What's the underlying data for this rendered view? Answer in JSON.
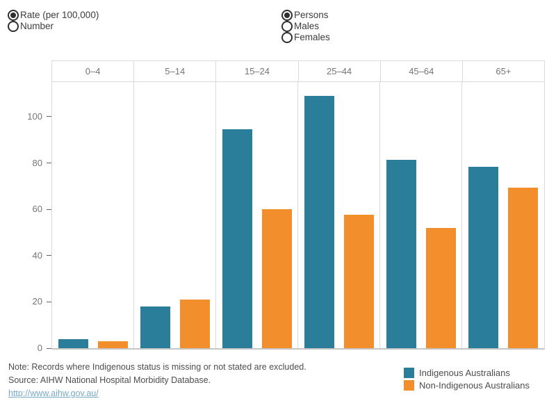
{
  "controls": {
    "measure_group": {
      "options": [
        {
          "label": "Rate (per 100,000)",
          "selected": true
        },
        {
          "label": "Number",
          "selected": false
        }
      ]
    },
    "population_group": {
      "options": [
        {
          "label": "Persons",
          "selected": true
        },
        {
          "label": "Males",
          "selected": false
        },
        {
          "label": "Females",
          "selected": false
        }
      ]
    }
  },
  "chart_data": {
    "type": "bar",
    "categories": [
      "0–4",
      "5–14",
      "15–24",
      "25–44",
      "45–64",
      "65+"
    ],
    "series": [
      {
        "name": "Indigenous Australians",
        "color": "#2a7e9a",
        "values": [
          4,
          18,
          94.5,
          109,
          81.5,
          78.5
        ]
      },
      {
        "name": "Non-Indigenous Australians",
        "color": "#f28e2b",
        "values": [
          3,
          21,
          60,
          57.5,
          52,
          69.5
        ]
      }
    ],
    "y_ticks": [
      0,
      20,
      40,
      60,
      80,
      100
    ],
    "ylim": [
      0,
      115
    ],
    "xlabel": "",
    "ylabel": "",
    "grid": "column-dividers-only",
    "legend_position": "bottom-right"
  },
  "footer": {
    "note": "Note: Records where Indigenous status is missing or not stated are excluded.",
    "source": "Source: AIHW National Hospital Morbidity Database.",
    "link": "http://www.aihw.gov.au/"
  },
  "colors": {
    "border_gray": "#d9d9d9",
    "axis_gray": "#c6c6c6",
    "tick_text": "#757575",
    "link_blue": "#78a8c4"
  }
}
